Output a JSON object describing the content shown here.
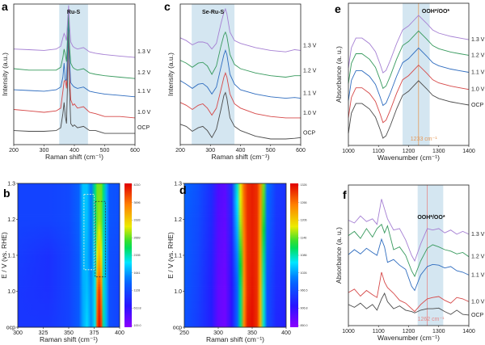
{
  "colors": {
    "OCP": "#4a4a4a",
    "1.0 V": "#d64848",
    "1.1 V": "#2e6cbf",
    "1.2 V": "#389a5e",
    "1.3 V": "#a57fd3",
    "band": "#cde2ef",
    "marker_e": "#e59a5a",
    "marker_f": "#e58a8a"
  },
  "chart_data": [
    {
      "id": "a",
      "panel_label": "a",
      "type": "line",
      "xlabel": "Raman shift (cm⁻¹)",
      "ylabel": "Intensity (a.u.)",
      "xlim": [
        200,
        600
      ],
      "xticks": [
        "200",
        "300",
        "400",
        "500",
        "600"
      ],
      "band": [
        350,
        445
      ],
      "band_label": "Ru-S",
      "x": [
        200,
        250,
        300,
        340,
        355,
        362,
        366,
        370,
        374,
        378,
        381,
        384,
        388,
        395,
        400,
        410,
        430,
        450,
        470,
        500,
        550,
        600
      ],
      "series": [
        {
          "name": "OCP",
          "values": [
            1.0,
            0.95,
            0.95,
            1.0,
            1.2,
            2.2,
            3.0,
            2.0,
            1.5,
            5,
            8.5,
            4,
            1.5,
            1.3,
            1.4,
            1.2,
            1.3,
            1.0,
            1.0,
            0.8,
            0.8,
            0.8
          ]
        },
        {
          "name": "1.0 V",
          "values": [
            2.5,
            2.4,
            2.3,
            2.4,
            2.6,
            3.8,
            4.5,
            4.6,
            4.0,
            6.5,
            9,
            5,
            3.2,
            2.8,
            2.9,
            2.6,
            2.7,
            2.3,
            2.2,
            2.0,
            2.0,
            1.9
          ]
        },
        {
          "name": "1.1 V",
          "values": [
            3.9,
            3.85,
            3.8,
            3.9,
            4.1,
            4.8,
            5.8,
            4.6,
            4.6,
            7,
            9.3,
            6,
            4.4,
            4.2,
            4.1,
            4.0,
            4.1,
            3.8,
            3.7,
            3.6,
            3.5,
            3.4
          ]
        },
        {
          "name": "1.2 V",
          "values": [
            5.4,
            5.3,
            5.3,
            5.3,
            5.5,
            6.2,
            6.8,
            6.4,
            5.9,
            8,
            9.6,
            7,
            5.8,
            5.5,
            5.4,
            5.3,
            5.4,
            5.1,
            5.0,
            4.9,
            4.8,
            4.7
          ]
        },
        {
          "name": "1.3 V",
          "values": [
            6.8,
            6.75,
            6.7,
            6.8,
            7.0,
            7.6,
            7.9,
            7.7,
            7.4,
            9,
            9.9,
            8.5,
            7.3,
            7.0,
            6.9,
            6.8,
            6.9,
            6.6,
            6.5,
            6.4,
            6.3,
            6.2
          ]
        }
      ]
    },
    {
      "id": "c",
      "panel_label": "c",
      "type": "line",
      "xlabel": "Raman shift (cm⁻¹)",
      "ylabel": "Intensity (a.u.)",
      "xlim": [
        200,
        600
      ],
      "xticks": [
        "200",
        "300",
        "400",
        "500",
        "600"
      ],
      "band": [
        238,
        380
      ],
      "band_label": "Se-Ru-S",
      "x": [
        200,
        220,
        240,
        260,
        275,
        290,
        305,
        320,
        335,
        345,
        350,
        355,
        365,
        380,
        400,
        450,
        500,
        550,
        580,
        600
      ],
      "series": [
        {
          "name": "OCP",
          "values": [
            1.45,
            1.3,
            0.95,
            1.2,
            1.3,
            1.0,
            0.5,
            1.1,
            2.5,
            3.5,
            3.7,
            3.3,
            1.9,
            1.3,
            1.0,
            0.6,
            0.4,
            0.4,
            0.45,
            0.5
          ]
        },
        {
          "name": "1.0 V",
          "values": [
            3.0,
            2.8,
            2.5,
            2.8,
            2.9,
            2.6,
            2.1,
            2.6,
            3.9,
            4.8,
            5.1,
            4.8,
            3.6,
            2.9,
            2.6,
            2.2,
            2.0,
            1.9,
            1.9,
            1.9
          ]
        },
        {
          "name": "1.1 V",
          "values": [
            4.55,
            4.3,
            4.0,
            4.3,
            4.35,
            4.1,
            3.6,
            4.1,
            5.5,
            6.4,
            6.7,
            6.4,
            5.0,
            4.3,
            3.9,
            3.6,
            3.4,
            3.3,
            3.35,
            3.3
          ]
        },
        {
          "name": "1.2 V",
          "values": [
            6.0,
            5.8,
            5.5,
            5.8,
            5.85,
            5.6,
            5.0,
            5.6,
            7.0,
            7.8,
            8.0,
            7.7,
            6.4,
            5.7,
            5.4,
            5.1,
            4.9,
            4.8,
            4.9,
            4.9
          ]
        },
        {
          "name": "1.3 V",
          "values": [
            7.6,
            7.4,
            7.1,
            7.3,
            7.3,
            7.2,
            6.8,
            7.2,
            8.6,
            9.4,
            9.65,
            9.3,
            8.0,
            7.4,
            7.2,
            6.9,
            6.7,
            6.6,
            6.75,
            6.7
          ]
        }
      ]
    },
    {
      "id": "e",
      "panel_label": "e",
      "type": "line",
      "xlabel": "Wavenumber (cm⁻¹)",
      "ylabel": "Absorbance (a. u.)",
      "xlim": [
        1000,
        1400
      ],
      "xticks": [
        "1000",
        "1100",
        "1200",
        "1300",
        "1400"
      ],
      "band": [
        1180,
        1270
      ],
      "band_label": "OOH*/OO*",
      "marker": 1233,
      "marker_label": "1233 cm⁻¹",
      "x": [
        1000,
        1010,
        1025,
        1045,
        1070,
        1090,
        1105,
        1115,
        1125,
        1140,
        1160,
        1180,
        1200,
        1233,
        1260,
        1280,
        1300,
        1340,
        1370,
        1400
      ],
      "series": [
        {
          "name": "OCP",
          "values": [
            0.85,
            2.27,
            2.95,
            2.95,
            2.56,
            1.99,
            1.14,
            0.51,
            0.68,
            1.42,
            2.56,
            3.52,
            3.81,
            4.55,
            3.98,
            3.52,
            3.3,
            3.07,
            2.95,
            2.84
          ]
        },
        {
          "name": "1.0 V",
          "values": [
            1.95,
            3.37,
            4.05,
            4.05,
            3.66,
            3.09,
            2.24,
            1.61,
            1.78,
            2.52,
            3.66,
            4.62,
            4.91,
            5.65,
            5.08,
            4.62,
            4.4,
            4.17,
            4.05,
            3.94
          ]
        },
        {
          "name": "1.1 V",
          "values": [
            3.15,
            4.57,
            5.25,
            5.25,
            4.86,
            4.29,
            3.44,
            2.81,
            2.98,
            3.72,
            4.86,
            5.82,
            6.11,
            6.85,
            6.28,
            5.82,
            5.6,
            5.37,
            5.25,
            5.14
          ]
        },
        {
          "name": "1.2 V",
          "values": [
            4.35,
            5.77,
            6.45,
            6.45,
            6.06,
            5.49,
            4.64,
            4.01,
            4.18,
            4.92,
            6.06,
            7.02,
            7.31,
            8.05,
            7.48,
            7.02,
            6.8,
            6.57,
            6.45,
            6.34
          ]
        },
        {
          "name": "1.3 V",
          "values": [
            5.45,
            6.87,
            7.55,
            7.55,
            7.16,
            6.59,
            5.74,
            5.11,
            5.28,
            6.02,
            7.16,
            8.12,
            8.41,
            9.15,
            8.58,
            8.12,
            7.9,
            7.67,
            7.55,
            7.44
          ]
        }
      ]
    },
    {
      "id": "f",
      "panel_label": "f",
      "type": "line",
      "xlabel": "Wavenumber (cm⁻¹)",
      "ylabel": "Absorbance (a. u.)",
      "xlim": [
        1000,
        1400
      ],
      "xticks": [
        "1000",
        "1100",
        "1200",
        "1300",
        "1400"
      ],
      "band": [
        1230,
        1315
      ],
      "band_label": "OOH*/OO*",
      "marker": 1262,
      "marker_label": "1262 cm⁻¹",
      "x": [
        1000,
        1020,
        1040,
        1060,
        1080,
        1095,
        1110,
        1120,
        1130,
        1150,
        1170,
        1190,
        1210,
        1220,
        1240,
        1262,
        1280,
        1300,
        1320,
        1340,
        1360,
        1380,
        1400
      ],
      "series": [
        {
          "name": "OCP",
          "values": [
            1.5,
            1.3,
            1.6,
            1.2,
            1.5,
            1.1,
            1.9,
            2.3,
            1.7,
            1.2,
            1.4,
            1.1,
            1.0,
            0.9,
            1.1,
            1.2,
            1.2,
            1.25,
            1.0,
            0.8,
            1.1,
            0.8,
            0.75
          ]
        },
        {
          "name": "1.0 V",
          "values": [
            2.35,
            2.6,
            2.1,
            2.5,
            2.2,
            2.0,
            3.8,
            3.1,
            2.7,
            2.3,
            1.8,
            1.6,
            1.2,
            1.0,
            1.5,
            1.9,
            2.0,
            2.07,
            1.8,
            1.6,
            2.0,
            1.9,
            1.7
          ]
        },
        {
          "name": "1.1 V",
          "values": [
            5.05,
            5.4,
            5.1,
            5.5,
            5.2,
            5.0,
            6.15,
            5.6,
            4.5,
            4.7,
            4.3,
            4.0,
            2.8,
            2.5,
            3.6,
            4.2,
            4.35,
            4.3,
            4.1,
            4.2,
            3.9,
            3.8,
            3.6
          ]
        },
        {
          "name": "1.2 V",
          "values": [
            6.4,
            6.7,
            6.2,
            6.9,
            6.3,
            6.9,
            7.2,
            6.6,
            7.1,
            5.4,
            5.6,
            5.0,
            3.9,
            3.5,
            4.6,
            5.5,
            5.75,
            5.6,
            5.4,
            5.3,
            5.1,
            5.2,
            4.9
          ]
        },
        {
          "name": "1.3 V",
          "values": [
            7.5,
            7.3,
            7.8,
            7.4,
            7.6,
            7.2,
            9.0,
            8.3,
            7.6,
            6.8,
            6.9,
            6.1,
            5.0,
            4.6,
            5.8,
            6.9,
            6.8,
            6.9,
            6.6,
            6.8,
            6.5,
            6.7,
            6.5
          ]
        }
      ]
    },
    {
      "id": "b",
      "panel_label": "b",
      "type": "heatmap",
      "xlabel": "Raman shift (cm⁻¹)",
      "ylabel": "E / V (vs. RHE)",
      "xlim": [
        300,
        400
      ],
      "xticks": [
        "300",
        "325",
        "350",
        "375",
        "400"
      ],
      "yticks": [
        "ocp",
        "1.0",
        "1.1",
        "1.2",
        "1.3"
      ],
      "rows": [
        0.9,
        1.0,
        1.1,
        1.2,
        1.3
      ],
      "x": [
        300,
        330,
        350,
        360,
        364,
        368,
        372,
        376,
        378,
        380,
        382,
        384,
        387,
        390,
        400
      ],
      "z": [
        [
          1000,
          1000,
          1100,
          1300,
          1700,
          1900,
          1600,
          2000,
          3800,
          4200,
          3900,
          2200,
          1700,
          1200,
          1100
        ],
        [
          1000,
          950,
          1100,
          1300,
          1700,
          1800,
          1600,
          2000,
          3600,
          4000,
          3600,
          2100,
          1700,
          1200,
          1100
        ],
        [
          1050,
          950,
          1100,
          1300,
          1750,
          1750,
          1500,
          2000,
          3000,
          3300,
          3000,
          2100,
          1700,
          1200,
          1150
        ],
        [
          1100,
          1100,
          1150,
          1350,
          1800,
          1800,
          1500,
          2200,
          2700,
          2800,
          2700,
          2200,
          1700,
          1250,
          1200
        ],
        [
          1100,
          1100,
          1150,
          1350,
          1800,
          1800,
          1500,
          2300,
          2700,
          2700,
          2700,
          2300,
          1700,
          1250,
          1200
        ]
      ],
      "zlim": [
        100,
        4210
      ],
      "colorbar_ticks": [
        "4210",
        "3696",
        "3183",
        "2669",
        "2155",
        "1641",
        "1128",
        "613.8",
        "100.0"
      ],
      "boxes": [
        {
          "style": "white-dashed",
          "x": [
            365,
            375
          ],
          "y": [
            1.06,
            1.27
          ]
        },
        {
          "style": "dark-dashed",
          "x": [
            376,
            386
          ],
          "y": [
            1.04,
            1.25
          ]
        }
      ]
    },
    {
      "id": "d",
      "panel_label": "d",
      "type": "heatmap",
      "xlabel": "Raman shift (cm⁻¹)",
      "ylabel": "E / V (vs. RHE)",
      "xlim": [
        250,
        400
      ],
      "xticks": [
        "250",
        "300",
        "350",
        "400"
      ],
      "yticks": [
        "ocp",
        "1.0",
        "1.1",
        "1.2",
        "1.3"
      ],
      "rows": [
        0.9,
        1.0,
        1.1,
        1.2,
        1.3
      ],
      "x": [
        250,
        270,
        290,
        300,
        310,
        320,
        328,
        333,
        338,
        343,
        350,
        357,
        362,
        367,
        372,
        385,
        400
      ],
      "z": [
        [
          980,
          960,
          930,
          880,
          870,
          920,
          1000,
          1100,
          1250,
          1310,
          1320,
          1300,
          1220,
          1080,
          980,
          940,
          930
        ],
        [
          985,
          965,
          930,
          880,
          870,
          920,
          1000,
          1100,
          1240,
          1300,
          1315,
          1300,
          1220,
          1080,
          980,
          945,
          935
        ],
        [
          990,
          970,
          935,
          885,
          875,
          930,
          1020,
          1130,
          1250,
          1300,
          1310,
          1300,
          1230,
          1100,
          990,
          950,
          940
        ],
        [
          990,
          975,
          940,
          890,
          880,
          940,
          1050,
          1170,
          1260,
          1300,
          1310,
          1300,
          1240,
          1130,
          1000,
          955,
          945
        ],
        [
          1000,
          980,
          945,
          895,
          885,
          950,
          1080,
          1190,
          1270,
          1300,
          1310,
          1300,
          1250,
          1150,
          1010,
          960,
          950
        ]
      ],
      "zlim": [
        850,
        1326
      ],
      "colorbar_ticks": [
        "1326",
        "1266",
        "1206",
        "1146",
        "1086",
        "1026",
        "966.5",
        "906.8",
        "850.0"
      ],
      "boxes": []
    }
  ]
}
